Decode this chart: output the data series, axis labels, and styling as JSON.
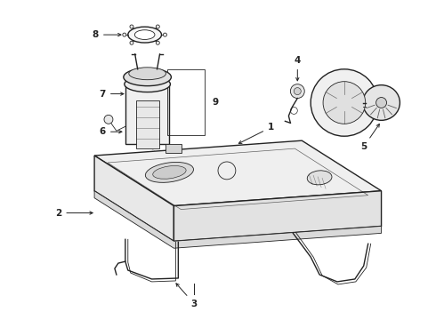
{
  "bg_color": "#ffffff",
  "line_color": "#222222",
  "figsize": [
    4.9,
    3.6
  ],
  "dpi": 100,
  "label_fontsize": 7.5,
  "lw_main": 1.0,
  "lw_thin": 0.6
}
